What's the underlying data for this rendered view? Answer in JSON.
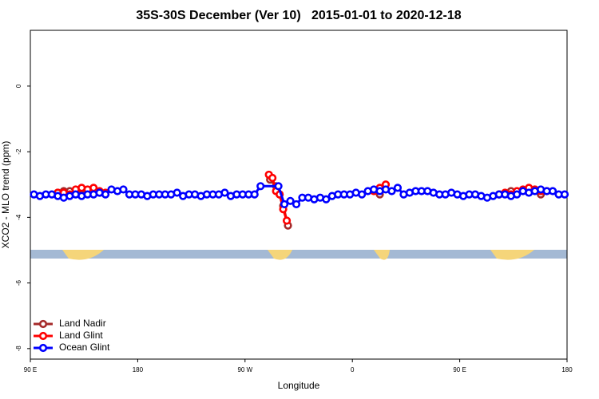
{
  "chart_data": {
    "type": "line",
    "title": "35S-30S December (Ver 10)   2015-01-01 to 2020-12-18",
    "x_label": "Longitude",
    "y_label": "XCO2 - MLO trend (ppm)",
    "xlim": [
      90,
      540
    ],
    "ylim": [
      -8.32,
      1.7
    ],
    "xticks": [
      {
        "value": 90,
        "label": "90 E"
      },
      {
        "value": 180,
        "label": "180"
      },
      {
        "value": 270,
        "label": "90 W"
      },
      {
        "value": 360,
        "label": "0"
      },
      {
        "value": 450,
        "label": "90 E"
      },
      {
        "value": 540,
        "label": "180"
      }
    ],
    "yticks": [
      0,
      -2,
      -4,
      -6,
      -8
    ],
    "legend": "bottom-left",
    "series": [
      {
        "name": "Land Nadir",
        "color": "#a52a2a",
        "x": [
          113,
          118,
          123,
          148,
          200,
          291,
          296,
          299,
          302,
          306,
          340,
          383,
          440,
          483,
          493,
          513,
          518
        ],
        "values": [
          -3.25,
          -3.2,
          -3.2,
          -3.25,
          null,
          -2.85,
          -3.05,
          -3.3,
          -3.65,
          -4.25,
          null,
          -3.3,
          null,
          -3.3,
          -3.2,
          -3.15,
          -3.3
        ]
      },
      {
        "name": "Land Glint",
        "color": "#ff0000",
        "x": [
          113,
          118,
          123,
          128,
          133,
          138,
          143,
          148,
          153,
          200,
          290,
          293,
          296,
          299,
          302,
          305,
          340,
          378,
          383,
          388,
          440,
          483,
          488,
          493,
          498,
          503,
          508,
          513,
          518,
          523
        ],
        "values": [
          -3.25,
          -3.25,
          -3.3,
          -3.15,
          -3.1,
          -3.15,
          -3.1,
          -3.2,
          -3.25,
          null,
          -2.7,
          -2.8,
          -3.2,
          -3.3,
          -3.75,
          -4.1,
          null,
          -3.2,
          -3.1,
          -3.0,
          null,
          -3.3,
          -3.25,
          -3.3,
          -3.2,
          -3.15,
          -3.1,
          -3.15,
          -3.2,
          -3.2
        ]
      },
      {
        "name": "Ocean Glint",
        "color": "#0000ff",
        "x": [
          93,
          98,
          103,
          108,
          113,
          118,
          123,
          128,
          133,
          138,
          143,
          148,
          153,
          158,
          163,
          168,
          173,
          178,
          183,
          188,
          193,
          198,
          203,
          208,
          213,
          218,
          223,
          228,
          233,
          238,
          243,
          248,
          253,
          258,
          263,
          268,
          273,
          278,
          283,
          298,
          303,
          308,
          313,
          318,
          323,
          328,
          333,
          338,
          343,
          348,
          353,
          358,
          363,
          368,
          373,
          378,
          383,
          388,
          393,
          398,
          403,
          408,
          413,
          418,
          423,
          428,
          433,
          438,
          443,
          448,
          453,
          458,
          463,
          468,
          473,
          478,
          483,
          488,
          493,
          498,
          503,
          508,
          513,
          518,
          523,
          528,
          533,
          538
        ],
        "values": [
          -3.3,
          -3.35,
          -3.3,
          -3.3,
          -3.35,
          -3.4,
          -3.35,
          -3.3,
          -3.35,
          -3.3,
          -3.3,
          -3.25,
          -3.3,
          -3.15,
          -3.2,
          -3.15,
          -3.3,
          -3.3,
          -3.3,
          -3.35,
          -3.3,
          -3.3,
          -3.3,
          -3.3,
          -3.25,
          -3.35,
          -3.3,
          -3.3,
          -3.35,
          -3.3,
          -3.3,
          -3.3,
          -3.25,
          -3.35,
          -3.3,
          -3.3,
          -3.3,
          -3.3,
          -3.05,
          -3.05,
          -3.6,
          -3.5,
          -3.6,
          -3.4,
          -3.4,
          -3.45,
          -3.4,
          -3.45,
          -3.35,
          -3.3,
          -3.3,
          -3.3,
          -3.25,
          -3.3,
          -3.2,
          -3.15,
          -3.2,
          -3.15,
          -3.2,
          -3.1,
          -3.3,
          -3.25,
          -3.2,
          -3.2,
          -3.2,
          -3.25,
          -3.3,
          -3.3,
          -3.25,
          -3.3,
          -3.35,
          -3.3,
          -3.3,
          -3.35,
          -3.4,
          -3.35,
          -3.3,
          -3.3,
          -3.35,
          -3.3,
          -3.2,
          -3.25,
          -3.2,
          -3.15,
          -3.2,
          -3.2,
          -3.3,
          -3.3
        ]
      }
    ]
  }
}
